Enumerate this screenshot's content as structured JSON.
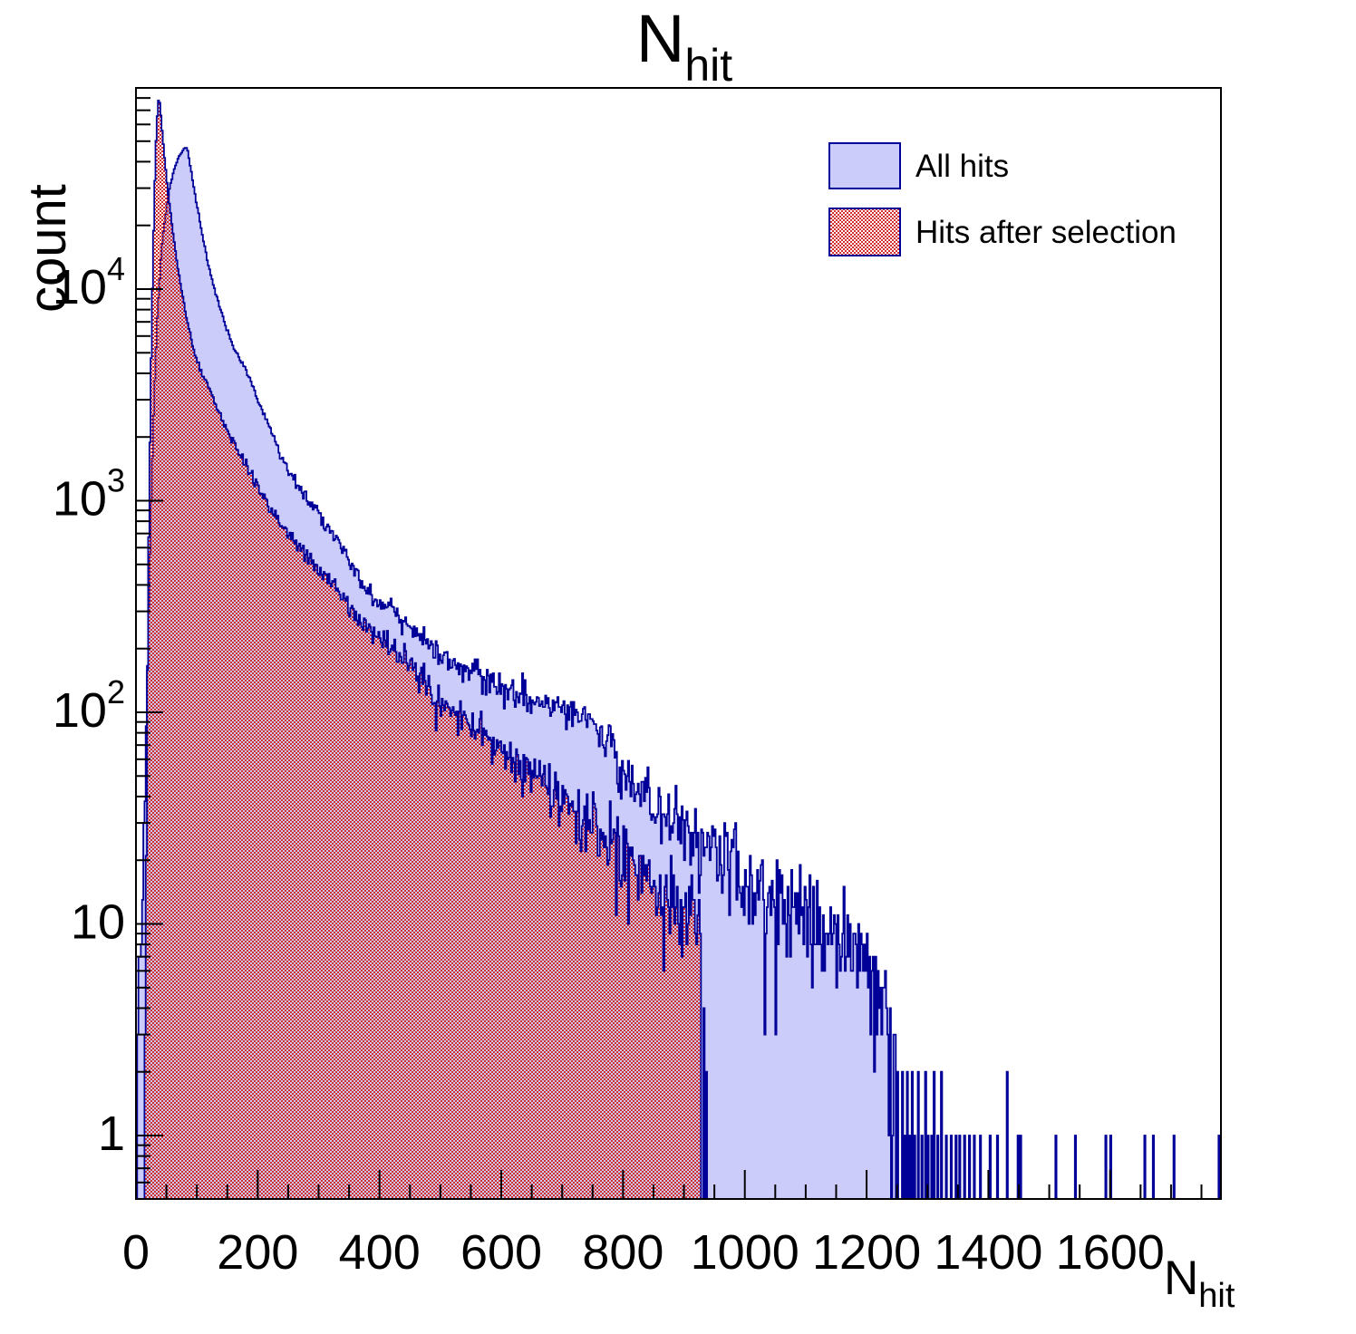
{
  "title": {
    "main": "N",
    "sub": "hit"
  },
  "axes": {
    "x": {
      "label_main": "N",
      "label_sub": "hit",
      "min": 0,
      "max": 1782,
      "major_ticks": [
        0,
        200,
        400,
        600,
        800,
        1000,
        1200,
        1400,
        1600
      ],
      "minor_step": 50
    },
    "y": {
      "label": "count",
      "scale": "log",
      "min": 0.5,
      "max": 89000,
      "decade_labels": [
        {
          "value": 1,
          "base": "1",
          "exp": ""
        },
        {
          "value": 10,
          "base": "10",
          "exp": ""
        },
        {
          "value": 100,
          "base": "10",
          "exp": "2"
        },
        {
          "value": 1000,
          "base": "10",
          "exp": "3"
        },
        {
          "value": 10000,
          "base": "10",
          "exp": "4"
        }
      ]
    }
  },
  "legend": {
    "items": [
      {
        "label": "All hits",
        "swatch": "solid-blue"
      },
      {
        "label": "Hits after selection",
        "swatch": "red-checker"
      }
    ]
  },
  "colors": {
    "hist_line": "#000099",
    "blue_fill": "#ccccfa",
    "red_fill": "#d22d2d",
    "axis": "#000000",
    "text": "#000000"
  },
  "chart_data": {
    "type": "histogram",
    "title": "N_hit",
    "xlabel": "N_hit",
    "ylabel": "count",
    "x_range": [
      0,
      1782
    ],
    "y_range": [
      0.5,
      89000
    ],
    "y_scale": "log",
    "bin_width": 2,
    "grid": false,
    "legend_position": "top-right",
    "noise": "poisson-approx",
    "series": [
      {
        "name": "All hits",
        "style": "solid",
        "seed": 1337,
        "envelope": [
          [
            2,
            0.8
          ],
          [
            4,
            6
          ],
          [
            6,
            11
          ],
          [
            8,
            9
          ],
          [
            10,
            14
          ],
          [
            12,
            22
          ],
          [
            15,
            45
          ],
          [
            18,
            110
          ],
          [
            21,
            300
          ],
          [
            25,
            1000
          ],
          [
            30,
            3200
          ],
          [
            36,
            8500
          ],
          [
            44,
            18000
          ],
          [
            54,
            29000
          ],
          [
            64,
            38000
          ],
          [
            72,
            43000
          ],
          [
            80,
            46500
          ],
          [
            84,
            46800
          ],
          [
            90,
            37000
          ],
          [
            100,
            25000
          ],
          [
            110,
            17500
          ],
          [
            119,
            13000
          ],
          [
            130,
            9800
          ],
          [
            140,
            7800
          ],
          [
            150,
            6400
          ],
          [
            160,
            5300
          ],
          [
            170,
            4700
          ],
          [
            179,
            4200
          ],
          [
            190,
            3600
          ],
          [
            200,
            3000
          ],
          [
            210,
            2600
          ],
          [
            220,
            2200
          ],
          [
            230,
            1900
          ],
          [
            238,
            1570
          ],
          [
            255,
            1350
          ],
          [
            270,
            1150
          ],
          [
            285,
            1000
          ],
          [
            298,
            890
          ],
          [
            315,
            760
          ],
          [
            330,
            640
          ],
          [
            350,
            520
          ],
          [
            372,
            400
          ],
          [
            395,
            345
          ],
          [
            420,
            300
          ],
          [
            440,
            260
          ],
          [
            460,
            230
          ],
          [
            491,
            200
          ],
          [
            515,
            180
          ],
          [
            540,
            160
          ],
          [
            570,
            145
          ],
          [
            600,
            130
          ],
          [
            630,
            120
          ],
          [
            660,
            112
          ],
          [
            700,
            104
          ],
          [
            744,
            95
          ],
          [
            775,
            70
          ],
          [
            800,
            55
          ],
          [
            820,
            45
          ],
          [
            850,
            38
          ],
          [
            875,
            32
          ],
          [
            900,
            28
          ],
          [
            925,
            25
          ],
          [
            950,
            22
          ],
          [
            975,
            19
          ],
          [
            1000,
            16
          ],
          [
            1025,
            14
          ],
          [
            1050,
            13
          ],
          [
            1075,
            12
          ],
          [
            1100,
            11
          ],
          [
            1125,
            10
          ],
          [
            1150,
            9
          ],
          [
            1175,
            8
          ],
          [
            1200,
            7
          ],
          [
            1215,
            6
          ],
          [
            1230,
            5
          ],
          [
            1240,
            3
          ],
          [
            1252,
            2
          ]
        ],
        "spikes": [
          [
            1258,
            2
          ],
          [
            1262,
            1
          ],
          [
            1266,
            2
          ],
          [
            1271,
            1
          ],
          [
            1275,
            2
          ],
          [
            1279,
            1
          ],
          [
            1285,
            2
          ],
          [
            1290,
            1
          ],
          [
            1296,
            2
          ],
          [
            1301,
            1
          ],
          [
            1307,
            1
          ],
          [
            1311,
            2
          ],
          [
            1317,
            1
          ],
          [
            1323,
            2
          ],
          [
            1331,
            1
          ],
          [
            1339,
            1
          ],
          [
            1346,
            1
          ],
          [
            1353,
            1
          ],
          [
            1361,
            1
          ],
          [
            1369,
            1
          ],
          [
            1377,
            1
          ],
          [
            1386,
            1
          ],
          [
            1403,
            1
          ],
          [
            1415,
            1
          ],
          [
            1431,
            2
          ],
          [
            1449,
            1
          ],
          [
            1452,
            1
          ],
          [
            1510,
            1
          ],
          [
            1543,
            1
          ],
          [
            1592,
            1
          ],
          [
            1601,
            1
          ],
          [
            1656,
            1
          ],
          [
            1671,
            1
          ],
          [
            1705,
            1
          ],
          [
            1779,
            1
          ]
        ]
      },
      {
        "name": "Hits after selection",
        "style": "red-checker",
        "seed": 9001,
        "envelope": [
          [
            13,
            0.8
          ],
          [
            15,
            5
          ],
          [
            17,
            30
          ],
          [
            19,
            150
          ],
          [
            21,
            650
          ],
          [
            24,
            3200
          ],
          [
            27,
            10000
          ],
          [
            30,
            26000
          ],
          [
            33,
            50000
          ],
          [
            36,
            75000
          ],
          [
            38,
            81000
          ],
          [
            40,
            72000
          ],
          [
            43,
            56000
          ],
          [
            47,
            42000
          ],
          [
            52,
            30000
          ],
          [
            58,
            21500
          ],
          [
            65,
            15000
          ],
          [
            73,
            10500
          ],
          [
            82,
            7600
          ],
          [
            92,
            5600
          ],
          [
            102,
            4400
          ],
          [
            112,
            3800
          ],
          [
            119,
            3500
          ],
          [
            130,
            2900
          ],
          [
            140,
            2500
          ],
          [
            150,
            2150
          ],
          [
            160,
            1900
          ],
          [
            170,
            1650
          ],
          [
            179,
            1480
          ],
          [
            190,
            1300
          ],
          [
            200,
            1150
          ],
          [
            210,
            1030
          ],
          [
            220,
            930
          ],
          [
            230,
            850
          ],
          [
            238,
            780
          ],
          [
            255,
            680
          ],
          [
            270,
            600
          ],
          [
            285,
            540
          ],
          [
            298,
            480
          ],
          [
            315,
            430
          ],
          [
            330,
            380
          ],
          [
            350,
            310
          ],
          [
            372,
            260
          ],
          [
            395,
            230
          ],
          [
            420,
            200
          ],
          [
            440,
            180
          ],
          [
            460,
            165
          ],
          [
            491,
            115
          ],
          [
            515,
            105
          ],
          [
            540,
            90
          ],
          [
            570,
            78
          ],
          [
            600,
            68
          ],
          [
            625,
            60
          ],
          [
            650,
            52
          ],
          [
            675,
            46
          ],
          [
            700,
            40
          ],
          [
            722,
            36
          ],
          [
            744,
            32
          ],
          [
            775,
            26
          ],
          [
            800,
            22
          ],
          [
            825,
            18
          ],
          [
            850,
            15
          ],
          [
            875,
            13
          ],
          [
            900,
            11
          ],
          [
            915,
            12
          ],
          [
            925,
            10
          ],
          [
            928,
            8
          ]
        ],
        "spikes": [
          [
            933,
            4
          ],
          [
            937,
            2
          ]
        ]
      }
    ]
  }
}
